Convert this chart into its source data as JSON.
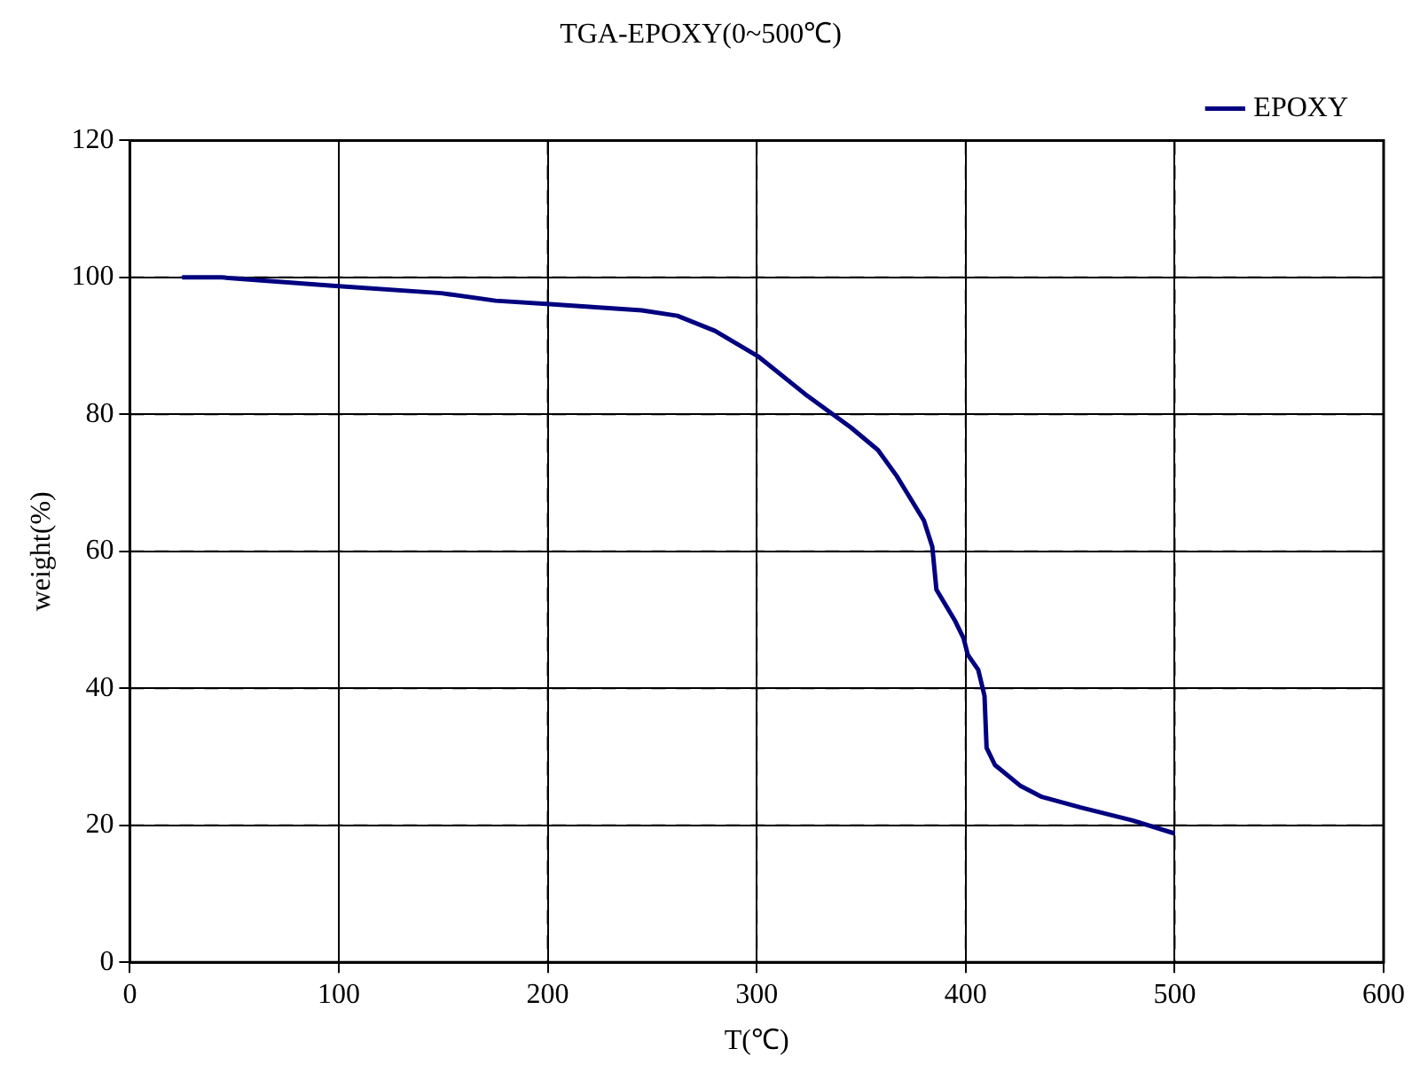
{
  "chart_data": {
    "type": "line",
    "title": "TGA-EPOXY(0~500℃)",
    "xlabel": "T(℃)",
    "ylabel": "weight(%)",
    "xlim": [
      0,
      600
    ],
    "xticks": [
      0,
      100,
      200,
      300,
      400,
      500,
      600
    ],
    "ylim": [
      0,
      120
    ],
    "yticks": [
      0,
      20,
      40,
      60,
      80,
      100,
      120
    ],
    "grid": true,
    "legend": "top right",
    "marker": "none",
    "line_style": "solid",
    "series": [
      {
        "name": "EPOXY",
        "color": "#000080",
        "x": [
          25,
          44,
          97,
          149,
          175,
          201,
          245,
          262,
          280,
          301,
          323,
          345,
          358,
          367,
          380,
          384,
          386,
          395,
          399,
          401,
          406,
          409,
          410,
          414,
          426,
          436,
          455,
          480,
          500
        ],
        "values": [
          100,
          100,
          98.8,
          97.7,
          96.6,
          96.1,
          95.2,
          94.4,
          92.2,
          88.4,
          83,
          78.1,
          74.8,
          71,
          64.5,
          60.7,
          54.4,
          49.8,
          47.3,
          44.9,
          42.7,
          38.9,
          31.3,
          28.8,
          25.8,
          24.2,
          22.6,
          20.7,
          18.8
        ]
      }
    ]
  }
}
